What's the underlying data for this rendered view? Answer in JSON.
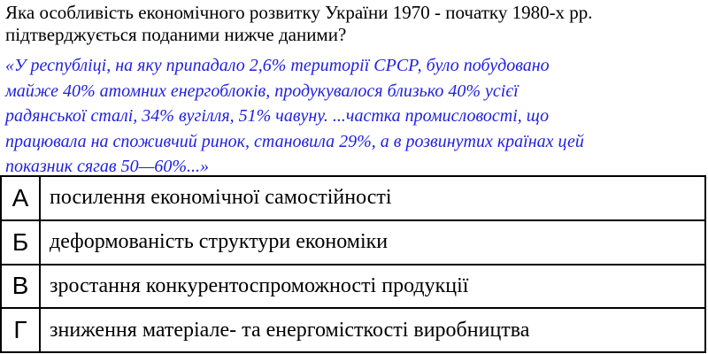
{
  "question": {
    "line1": "Яка особливість економічного розвитку України 1970 - початку 1980-х рр.",
    "line2": "підтверджується поданими нижче даними?"
  },
  "quote": {
    "lines": [
      "«У республіці, на яку припадало 2,6% території СРСР, було побудовано",
      "майже 40% атомних енергоблоків, продукувалося близько 40% усієї",
      "радянської сталі, 34% вугілля, 51% чавуну. ...частка промисловості, що",
      "працювала на споживчий ринок, становила 29%, а в розвинутих країнах цей",
      "показник сягав 50—60%...»"
    ],
    "color": "#1f1fe0"
  },
  "options": [
    {
      "letter": "А",
      "text": "посилення економічної самостійності"
    },
    {
      "letter": "Б",
      "text": "деформованість структури економіки"
    },
    {
      "letter": "В",
      "text": "зростання конкурентоспроможності продукції"
    },
    {
      "letter": "Г",
      "text": "зниження матеріале- та енергомісткості виробництва"
    }
  ]
}
